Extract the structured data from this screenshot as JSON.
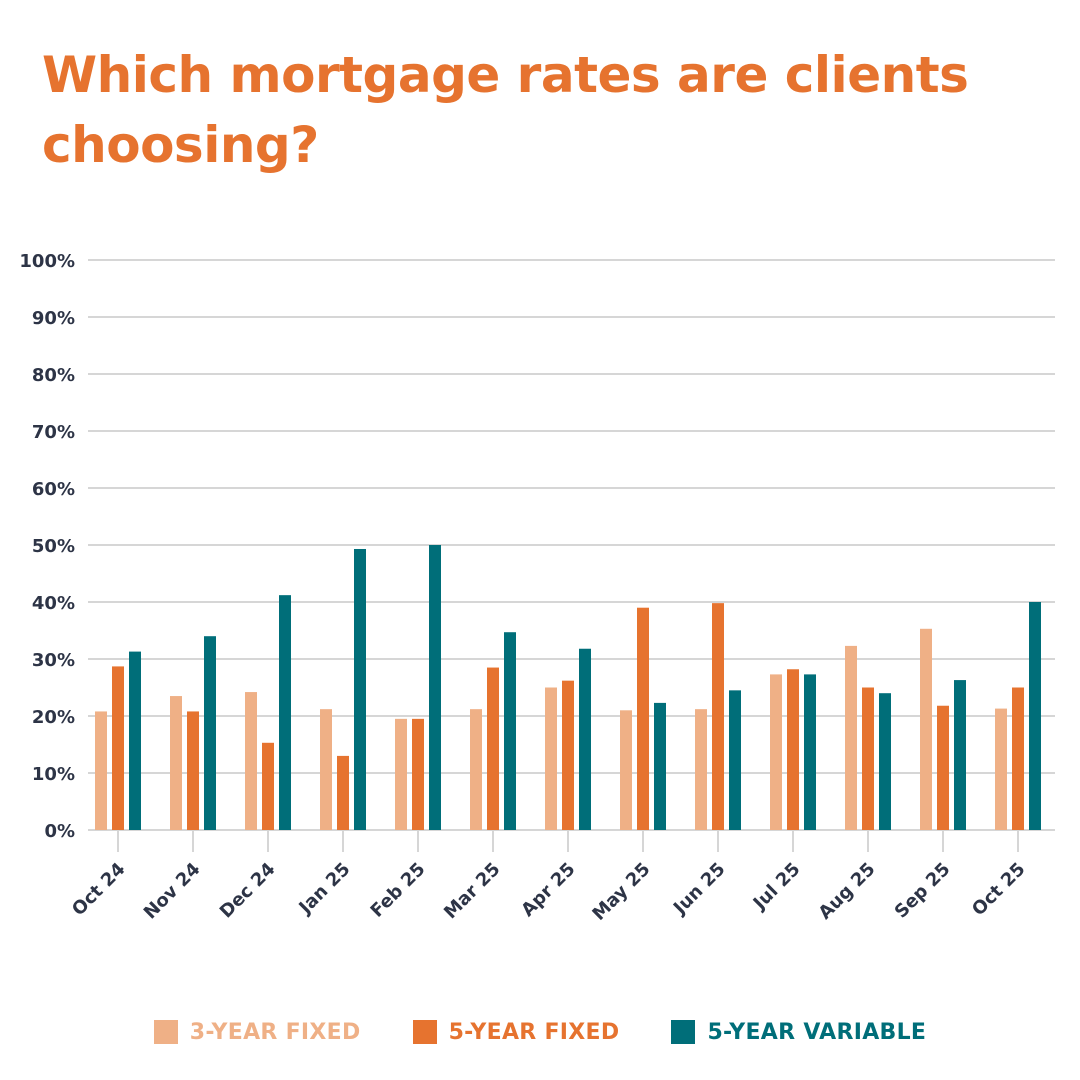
{
  "colors": {
    "title": "#e6732f",
    "three_year": "#efb086",
    "five_year": "#e6732f",
    "variable": "#006e79",
    "axis_text": "#2d3446",
    "grid": "#d6d6d6"
  },
  "chart_data": {
    "type": "bar",
    "title": "Which mortgage rates are clients choosing?",
    "xlabel": "",
    "ylabel": "",
    "ylim": [
      0,
      100
    ],
    "y_ticks": [
      "0%",
      "10%",
      "20%",
      "30%",
      "40%",
      "50%",
      "60%",
      "70%",
      "80%",
      "90%",
      "100%"
    ],
    "categories": [
      "Oct 24",
      "Nov 24",
      "Dec 24",
      "Jan 25",
      "Feb 25",
      "Mar 25",
      "Apr 25",
      "May 25",
      "Jun 25",
      "Jul 25",
      "Aug 25",
      "Sep 25",
      "Oct 25"
    ],
    "series": [
      {
        "name": "3-YEAR FIXED",
        "color": "#efb086",
        "values": [
          20.8,
          23.5,
          24.2,
          21.2,
          19.5,
          21.2,
          25.0,
          21.0,
          21.2,
          27.3,
          32.3,
          35.3,
          21.3
        ]
      },
      {
        "name": "5-YEAR FIXED",
        "color": "#e6732f",
        "values": [
          28.7,
          20.8,
          15.3,
          13.0,
          19.5,
          28.5,
          26.2,
          39.0,
          39.8,
          28.2,
          25.0,
          21.8,
          25.0
        ]
      },
      {
        "name": "5-YEAR VARIABLE",
        "color": "#006e79",
        "values": [
          31.3,
          34.0,
          41.2,
          49.3,
          50.0,
          34.7,
          31.8,
          22.3,
          24.5,
          27.3,
          24.0,
          26.3,
          40.0
        ]
      }
    ],
    "legend_position": "bottom-center",
    "grid": true
  }
}
